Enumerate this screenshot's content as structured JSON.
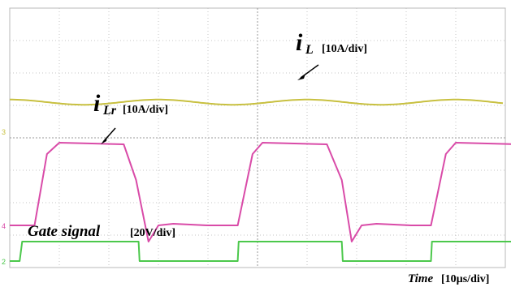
{
  "chart_data": {
    "type": "line",
    "title": "",
    "xlabel": "Time",
    "x_unit": "[10µs/div]",
    "grid": true,
    "x_divisions": 10,
    "y_divisions": 8,
    "series": [
      {
        "name": "iL",
        "label_main": "i",
        "label_sub": "L",
        "unit": "[10A/div]",
        "color": "#c8c040",
        "marker": "3",
        "baseline_div": 4.2,
        "dc_div": 0.9,
        "amplitude_div": 0.08,
        "period_div": 3.0,
        "values": [
          [
            0,
            0.98
          ],
          [
            0.75,
            0.9
          ],
          [
            1.5,
            0.82
          ],
          [
            2.25,
            0.9
          ],
          [
            3.0,
            0.98
          ],
          [
            3.75,
            0.9
          ],
          [
            4.5,
            0.82
          ],
          [
            5.25,
            0.9
          ],
          [
            6.0,
            0.98
          ],
          [
            6.75,
            0.9
          ],
          [
            7.5,
            0.82
          ],
          [
            8.25,
            0.9
          ],
          [
            9.0,
            0.98
          ],
          [
            9.75,
            0.9
          ]
        ]
      },
      {
        "name": "iLr",
        "label_main": "i",
        "label_sub": "Lr",
        "unit": "[10A/div]",
        "color": "#d94ba8",
        "marker": "4",
        "baseline_div": 1.3,
        "values": [
          [
            0,
            0
          ],
          [
            0.5,
            0
          ],
          [
            0.75,
            2.2
          ],
          [
            1.0,
            2.55
          ],
          [
            2.3,
            2.5
          ],
          [
            2.55,
            1.4
          ],
          [
            2.8,
            -0.5
          ],
          [
            3.0,
            0
          ],
          [
            3.3,
            0.05
          ],
          [
            4.0,
            0.0
          ],
          [
            4.6,
            0
          ],
          [
            4.9,
            2.2
          ],
          [
            5.1,
            2.55
          ],
          [
            6.4,
            2.5
          ],
          [
            6.7,
            1.4
          ],
          [
            6.9,
            -0.5
          ],
          [
            7.1,
            0
          ],
          [
            7.4,
            0.05
          ],
          [
            8.1,
            0.0
          ],
          [
            8.5,
            0
          ],
          [
            8.8,
            2.2
          ],
          [
            9.0,
            2.55
          ],
          [
            10.3,
            2.5
          ],
          [
            10.55,
            1.4
          ],
          [
            10.75,
            -0.5
          ],
          [
            10.95,
            0
          ],
          [
            11.3,
            0.05
          ],
          [
            12.0,
            0
          ]
        ]
      },
      {
        "name": "Gate signal",
        "unit": "[20V/div]",
        "color": "#4cc84c",
        "marker": "2",
        "baseline_div": 0.2,
        "values": [
          [
            0,
            0
          ],
          [
            0.2,
            0
          ],
          [
            0.25,
            0.6
          ],
          [
            0.5,
            0.6
          ],
          [
            0.52,
            0.6
          ],
          [
            2.6,
            0.6
          ],
          [
            2.62,
            0
          ],
          [
            4.6,
            0
          ],
          [
            4.62,
            0.6
          ],
          [
            6.7,
            0.6
          ],
          [
            6.72,
            0
          ],
          [
            8.5,
            0
          ],
          [
            8.52,
            0.6
          ],
          [
            10.6,
            0.6
          ],
          [
            10.62,
            0
          ],
          [
            12.0,
            0
          ]
        ]
      }
    ]
  }
}
